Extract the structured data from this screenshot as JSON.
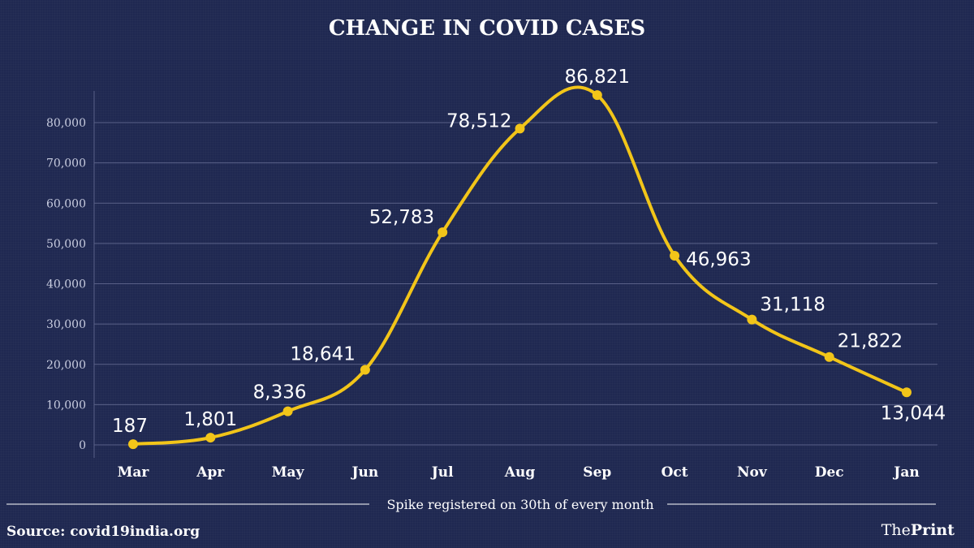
{
  "chart_data": {
    "type": "line",
    "title": "CHANGE IN COVID CASES",
    "categories": [
      "Mar",
      "Apr",
      "May",
      "Jun",
      "Jul",
      "Aug",
      "Sep",
      "Oct",
      "Nov",
      "Dec",
      "Jan"
    ],
    "values": [
      187,
      1801,
      8336,
      18641,
      52783,
      78512,
      86821,
      46963,
      31118,
      21822,
      13044
    ],
    "data_labels": [
      "187",
      "1,801",
      "8,336",
      "18,641",
      "52,783",
      "78,512",
      "86,821",
      "46,963",
      "31,118",
      "21,822",
      "13,044"
    ],
    "ylim": [
      0,
      80000
    ],
    "yticks": [
      0,
      10000,
      20000,
      30000,
      40000,
      50000,
      60000,
      70000,
      80000
    ],
    "ytick_labels": [
      "0",
      "10,000",
      "20,000",
      "30,000",
      "40,000",
      "50,000",
      "60,000",
      "70,000",
      "80,000"
    ],
    "grid": true,
    "note": "Spike registered on 30th of every month",
    "line_color": "#f2c519"
  },
  "footer": {
    "source": "Source: covid19india.org",
    "brand_prefix": "The",
    "brand_suffix": "Print"
  },
  "colors": {
    "background": "#1f2851",
    "gridline": "#5a6188",
    "line": "#f2c519"
  }
}
